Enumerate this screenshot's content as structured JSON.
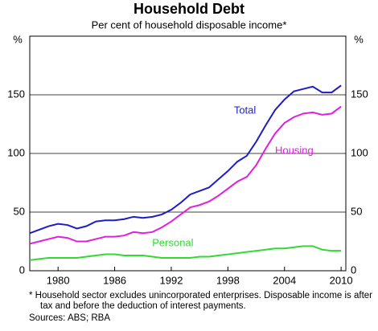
{
  "chart_data": {
    "type": "line",
    "title": "Household Debt",
    "subtitle": "Per cent of household disposable income*",
    "y_unit": "%",
    "x": [
      1977,
      1978,
      1979,
      1980,
      1981,
      1982,
      1983,
      1984,
      1985,
      1986,
      1987,
      1988,
      1989,
      1990,
      1991,
      1992,
      1993,
      1994,
      1995,
      1996,
      1997,
      1998,
      1999,
      2000,
      2001,
      2002,
      2003,
      2004,
      2005,
      2006,
      2007,
      2008,
      2009,
      2010
    ],
    "series": [
      {
        "name": "Total",
        "color": "#1c1cc8",
        "values": [
          32,
          35,
          38,
          40,
          39,
          36,
          38,
          42,
          43,
          43,
          44,
          46,
          45,
          46,
          48,
          52,
          58,
          65,
          68,
          71,
          78,
          85,
          93,
          98,
          110,
          124,
          137,
          146,
          153,
          155,
          157,
          152,
          152,
          158
        ]
      },
      {
        "name": "Housing",
        "color": "#e01ee0",
        "values": [
          23,
          25,
          27,
          29,
          28,
          25,
          25,
          27,
          29,
          29,
          30,
          33,
          32,
          33,
          37,
          42,
          48,
          54,
          56,
          59,
          64,
          70,
          76,
          80,
          90,
          104,
          117,
          126,
          131,
          134,
          135,
          133,
          134,
          140
        ]
      },
      {
        "name": "Personal",
        "color": "#33d933",
        "values": [
          9,
          10,
          11,
          11,
          11,
          11,
          12,
          13,
          14,
          14,
          13,
          13,
          13,
          12,
          11,
          11,
          11,
          11,
          12,
          12,
          13,
          14,
          15,
          16,
          17,
          18,
          19,
          19,
          20,
          21,
          21,
          18,
          17,
          17
        ]
      }
    ],
    "xlim": [
      1977,
      2010.5
    ],
    "xticks": [
      1980,
      1986,
      1992,
      1998,
      2004,
      2010
    ],
    "ylim": [
      0,
      200
    ],
    "yticks": [
      0,
      50,
      100,
      150
    ],
    "grid": true,
    "footnote": "*   Household sector excludes unincorporated enterprises. Disposable income is after tax and before the deduction of interest payments.",
    "source": "Sources: ABS; RBA"
  }
}
